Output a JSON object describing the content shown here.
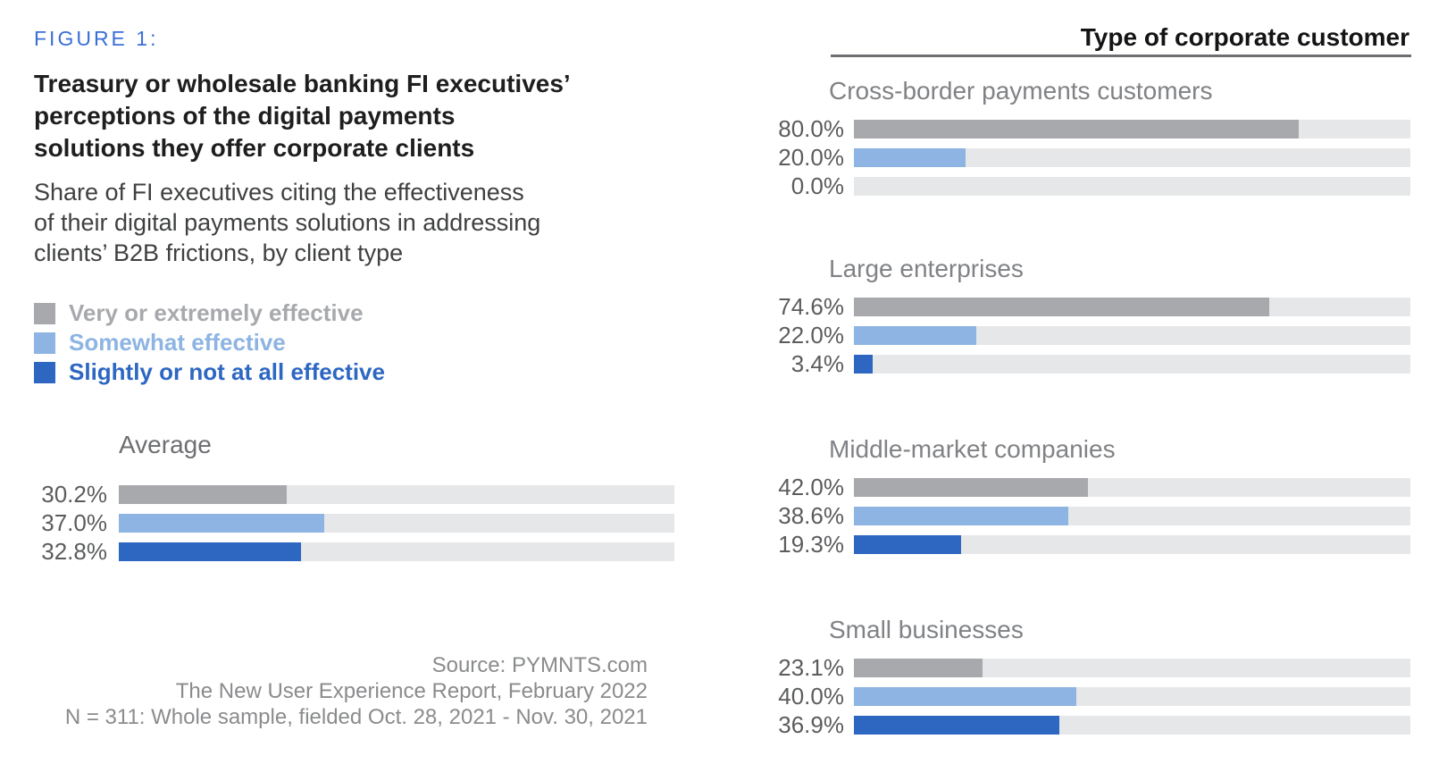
{
  "figure": {
    "label": "FIGURE 1:",
    "title_lines": [
      "Treasury or wholesale banking FI executives’",
      "perceptions of the digital payments",
      "solutions they offer corporate clients"
    ],
    "subtitle_lines": [
      "Share of FI executives citing the effectiveness",
      "of their digital payments solutions in addressing",
      "clients’ B2B frictions, by client type"
    ]
  },
  "legend": {
    "items": [
      {
        "label": "Very or extremely effective",
        "color": "#a7a9ac"
      },
      {
        "label": "Somewhat effective",
        "color": "#8db4e2"
      },
      {
        "label": "Slightly or not at all effective",
        "color": "#2d67c2"
      }
    ]
  },
  "right_column": {
    "header": "Type of corporate customer"
  },
  "source_lines": [
    "Source: PYMNTS.com",
    "The New User Experience Report, February 2022",
    "N = 311: Whole sample, fielded  Oct. 28, 2021 - Nov. 30, 2021"
  ],
  "chart_data": {
    "type": "bar",
    "orientation": "horizontal",
    "xlim": [
      0,
      100
    ],
    "grid": false,
    "legend_position": "upper-left",
    "series_names": [
      "Very or extremely effective",
      "Somewhat effective",
      "Slightly or not at all effective"
    ],
    "groups": [
      {
        "name": "Average",
        "values": [
          30.2,
          37.0,
          32.8
        ],
        "labels": [
          "30.2%",
          "37.0%",
          "32.8%"
        ]
      },
      {
        "name": "Cross-border payments customers",
        "values": [
          80.0,
          20.0,
          0.0
        ],
        "labels": [
          "80.0%",
          "20.0%",
          "0.0%"
        ]
      },
      {
        "name": "Large enterprises",
        "values": [
          74.6,
          22.0,
          3.4
        ],
        "labels": [
          "74.6%",
          "22.0%",
          "3.4%"
        ]
      },
      {
        "name": "Middle-market companies",
        "values": [
          42.0,
          38.6,
          19.3
        ],
        "labels": [
          "42.0%",
          "38.6%",
          "19.3%"
        ]
      },
      {
        "name": "Small businesses",
        "values": [
          23.1,
          40.0,
          36.9
        ],
        "labels": [
          "23.1%",
          "40.0%",
          "36.9%"
        ]
      }
    ]
  }
}
